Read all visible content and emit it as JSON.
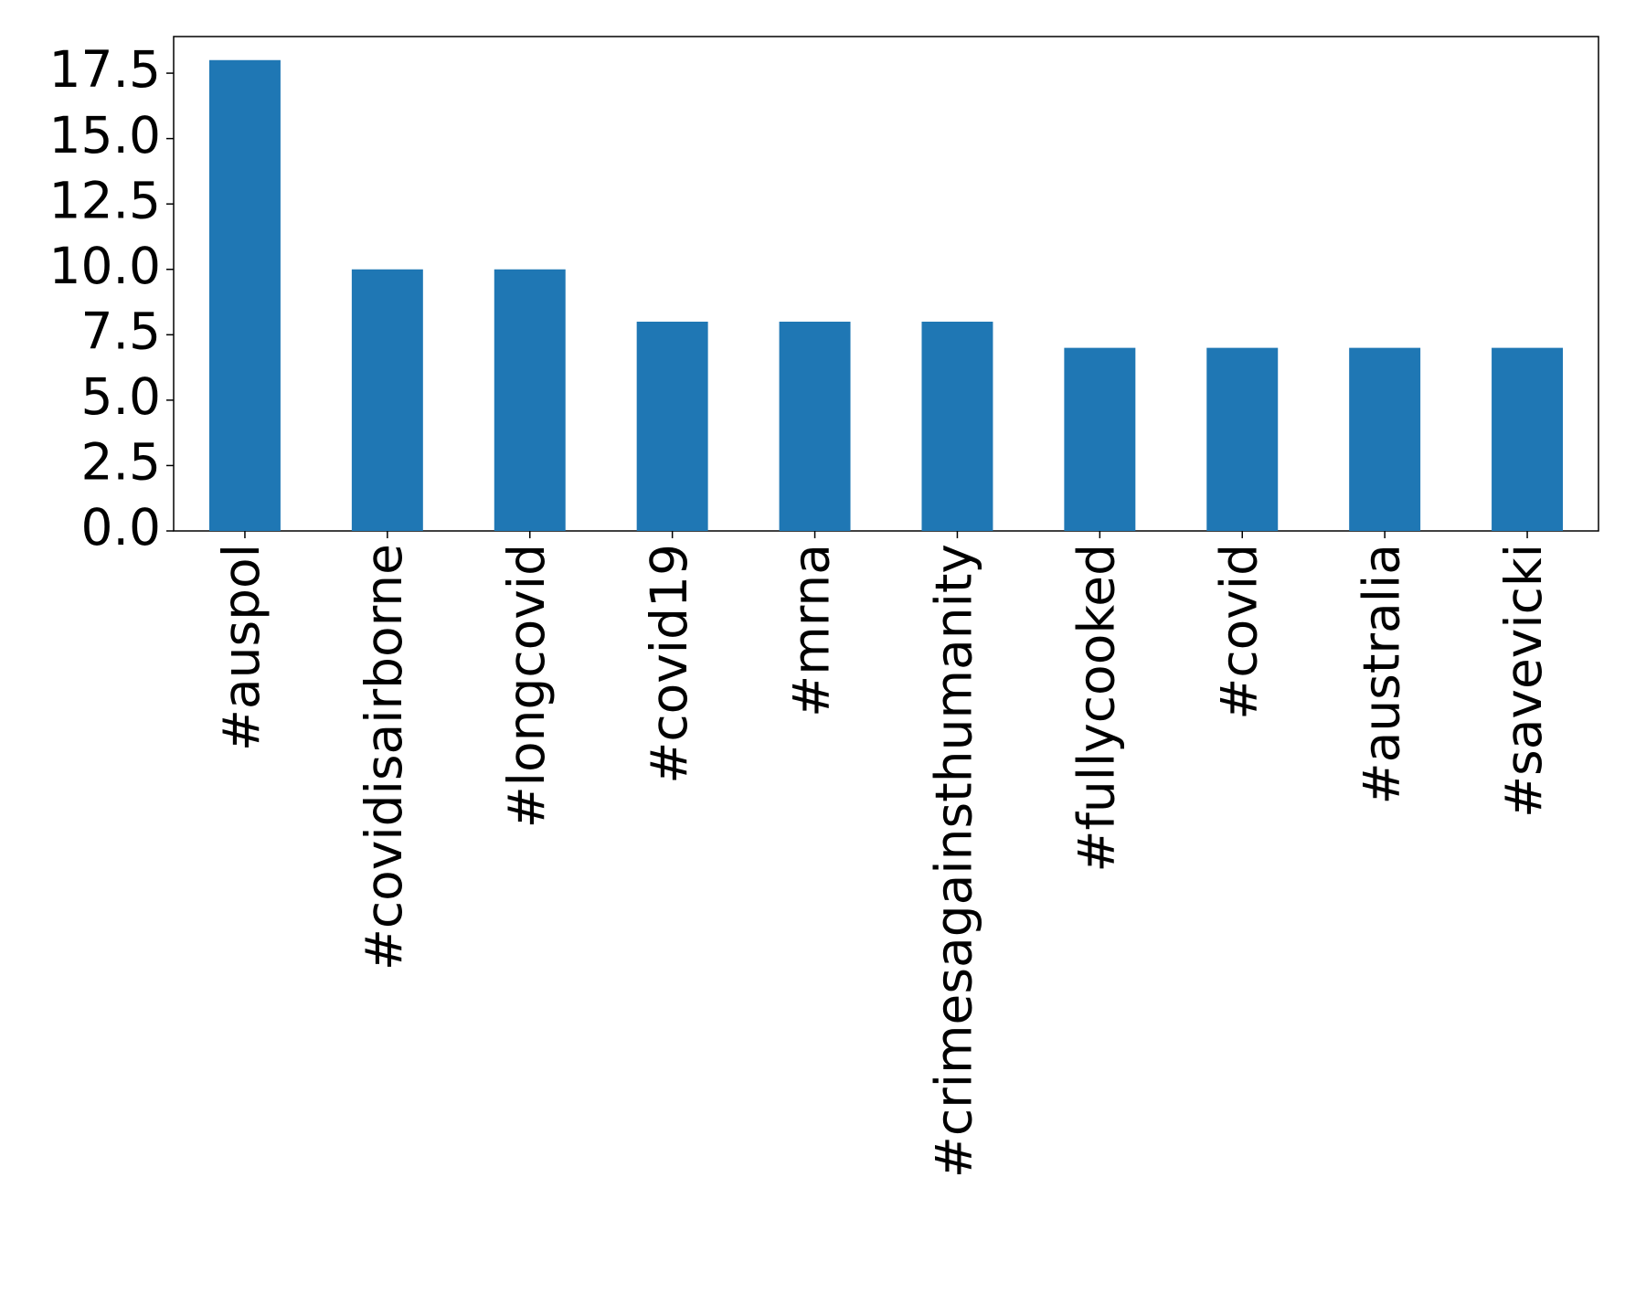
{
  "chart_data": {
    "type": "bar",
    "categories": [
      "#auspol",
      "#covidisairborne",
      "#longcovid",
      "#covid19",
      "#mrna",
      "#crimesagainsthumanity",
      "#fullycooked",
      "#covid",
      "#australia",
      "#savevicki"
    ],
    "values": [
      18,
      10,
      10,
      8,
      8,
      8,
      7,
      7,
      7,
      7
    ],
    "color": "#1f77b4",
    "ylim": [
      0,
      18.9
    ],
    "yticks": [
      {
        "value": 0,
        "label": "0.0"
      },
      2.5,
      {
        "value": 5,
        "label": "5.0"
      },
      7.5,
      {
        "value": 10,
        "label": "10.0"
      },
      12.5,
      {
        "value": 15,
        "label": "15.0"
      },
      17.5
    ],
    "grid": false
  }
}
